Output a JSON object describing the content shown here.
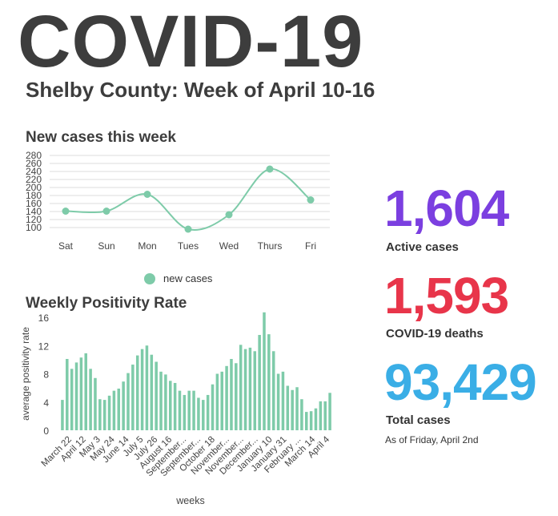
{
  "header": {
    "title": "COVID-19",
    "subtitle": "Shelby County: Week of April 10-16"
  },
  "colors": {
    "series": "#7ecba9",
    "active": "#7b3fe0",
    "deaths": "#e8354a",
    "total": "#3aaee6"
  },
  "stats": {
    "active_value": "1,604",
    "active_label": "Active cases",
    "deaths_value": "1,593",
    "deaths_label": "COVID-19 deaths",
    "total_value": "93,429",
    "total_label": "Total cases",
    "as_of": "As of Friday, April 2nd"
  },
  "chart_data": [
    {
      "type": "line",
      "title": "New cases this week",
      "categories": [
        "Sat",
        "Sun",
        "Mon",
        "Tues",
        "Wed",
        "Thurs",
        "Fri"
      ],
      "series": [
        {
          "name": "new cases",
          "values": [
            141,
            141,
            183,
            96,
            132,
            246,
            169
          ]
        }
      ],
      "yticks": [
        100,
        120,
        140,
        160,
        180,
        200,
        220,
        240,
        260,
        280
      ],
      "ylim": [
        90,
        280
      ],
      "grid": true,
      "legend": "bottom"
    },
    {
      "type": "bar",
      "title": "Weekly Positivity Rate",
      "xlabel": "weeks",
      "ylabel": "average positivity rate",
      "ylim": [
        0,
        16
      ],
      "yticks": [
        0,
        4,
        8,
        12,
        16
      ],
      "grid": false,
      "tick_labels": [
        "March 22",
        "April 12",
        "May 3",
        "May 24",
        "June 14",
        "July 5",
        "July 26",
        "August 16",
        "September...",
        "September...",
        "October 18",
        "November...",
        "November...",
        "December...",
        "January 10",
        "January 31",
        "February ...",
        "March 14",
        "April 4"
      ],
      "values": [
        4.3,
        10.1,
        8.7,
        9.6,
        10.3,
        10.9,
        8.7,
        7.4,
        4.4,
        4.3,
        4.9,
        5.6,
        5.9,
        6.9,
        8.1,
        9.3,
        10.6,
        11.5,
        12.0,
        10.7,
        9.7,
        8.3,
        7.9,
        7.0,
        6.7,
        5.6,
        5.0,
        5.6,
        5.6,
        4.6,
        4.3,
        5.0,
        6.5,
        8.0,
        8.3,
        9.1,
        10.1,
        9.5,
        12.1,
        11.5,
        11.7,
        11.2,
        13.5,
        16.7,
        13.6,
        11.2,
        8.0,
        8.3,
        6.3,
        5.7,
        6.1,
        4.4,
        2.6,
        2.7,
        3.1,
        4.1,
        4.1,
        5.3
      ]
    }
  ]
}
